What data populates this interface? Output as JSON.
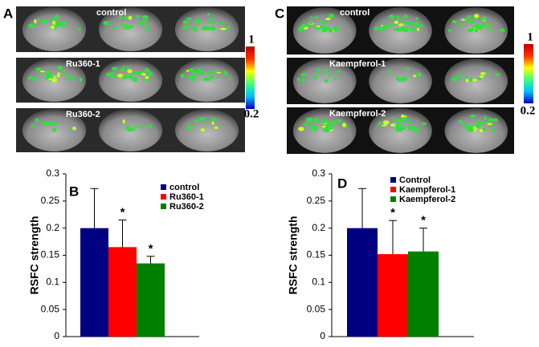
{
  "panels": [
    {
      "letter": "A",
      "labels": [
        "control",
        "Ru360-1",
        "Ru360-2"
      ],
      "colorbar": [
        "1",
        "0.2"
      ]
    },
    {
      "letter": "C",
      "labels": [
        "control",
        "Kaempferol-1",
        "Kaempferol-2"
      ],
      "colorbar": [
        "1",
        "0.2"
      ]
    }
  ],
  "chart_data": [
    {
      "type": "bar",
      "letter": "B",
      "ylabel": "RSFC  strength",
      "categories": [
        null
      ],
      "series": [
        {
          "name": "control",
          "color": "#000080",
          "values": [
            0.2
          ],
          "errors": [
            0.073
          ]
        },
        {
          "name": "Ru360-1",
          "color": "#ff0000",
          "values": [
            0.165
          ],
          "errors": [
            0.05
          ],
          "marker": "*"
        },
        {
          "name": "Ru360-2",
          "color": "#008000",
          "values": [
            0.135
          ],
          "errors": [
            0.013
          ],
          "marker": "*"
        }
      ],
      "ylim": [
        0,
        0.3
      ],
      "yticks": [
        0,
        0.05,
        0.1,
        0.15,
        0.2,
        0.25,
        0.3
      ],
      "legend": "upper right"
    },
    {
      "type": "bar",
      "letter": "D",
      "ylabel": "RSFC  strength",
      "categories": [
        null
      ],
      "series": [
        {
          "name": "Control",
          "color": "#000080",
          "values": [
            0.2
          ],
          "errors": [
            0.073
          ]
        },
        {
          "name": "Kaempferol-1",
          "color": "#ff0000",
          "values": [
            0.152
          ],
          "errors": [
            0.062
          ],
          "marker": "*"
        },
        {
          "name": "Kaempferol-2",
          "color": "#008000",
          "values": [
            0.157
          ],
          "errors": [
            0.043
          ],
          "marker": "*"
        }
      ],
      "ylim": [
        0,
        0.3
      ],
      "yticks": [
        0,
        0.05,
        0.1,
        0.15,
        0.2,
        0.25,
        0.3
      ],
      "legend": "upper right"
    }
  ]
}
